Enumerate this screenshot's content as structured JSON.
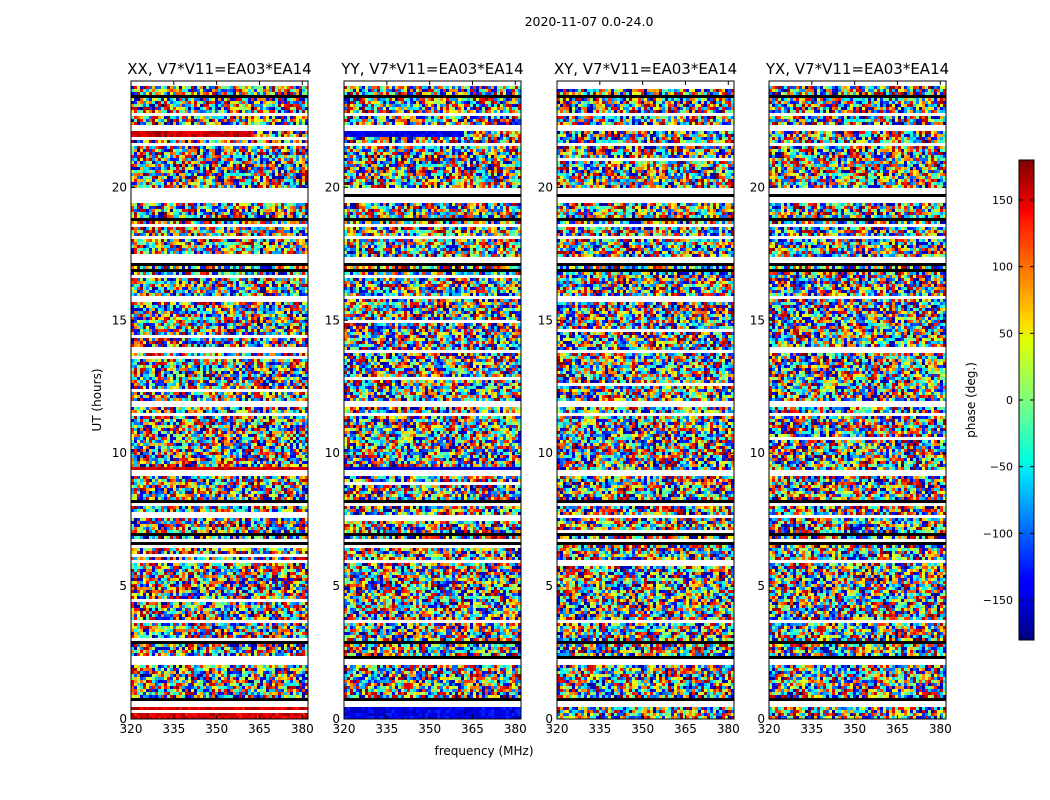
{
  "figure": {
    "suptitle": "2020-11-07 0.0-24.0",
    "xlabel": "frequency (MHz)",
    "ylabel": "UT (hours)"
  },
  "colorbar": {
    "label": "phase (deg.)",
    "range": [
      -180,
      180
    ],
    "ticks": [
      150,
      100,
      50,
      0,
      -50,
      -100,
      -150
    ],
    "tick_labels": [
      "150",
      "100",
      "50",
      "0",
      "−50",
      "−100",
      "−150"
    ],
    "colormap": "jet"
  },
  "chart_data": [
    {
      "type": "heatmap",
      "title": "XX, V7*V11=EA03*EA14",
      "x_ticks": [
        320,
        335,
        350,
        365,
        380
      ],
      "y_ticks": [
        0,
        5,
        10,
        15,
        20
      ],
      "xlim": [
        320,
        382
      ],
      "ylim": [
        0,
        24
      ],
      "z": "phase (deg.)",
      "zlim": [
        -180,
        180
      ]
    },
    {
      "type": "heatmap",
      "title": "YY, V7*V11=EA03*EA14",
      "x_ticks": [
        320,
        335,
        350,
        365,
        380
      ],
      "y_ticks": [
        0,
        5,
        10,
        15,
        20
      ],
      "xlim": [
        320,
        382
      ],
      "ylim": [
        0,
        24
      ],
      "z": "phase (deg.)",
      "zlim": [
        -180,
        180
      ]
    },
    {
      "type": "heatmap",
      "title": "XY, V7*V11=EA03*EA14",
      "x_ticks": [
        320,
        335,
        350,
        365,
        380
      ],
      "y_ticks": [
        0,
        5,
        10,
        15,
        20
      ],
      "xlim": [
        320,
        382
      ],
      "ylim": [
        0,
        24
      ],
      "z": "phase (deg.)",
      "zlim": [
        -180,
        180
      ]
    },
    {
      "type": "heatmap",
      "title": "YX, V7*V11=EA03*EA14",
      "x_ticks": [
        320,
        335,
        350,
        365,
        380
      ],
      "y_ticks": [
        0,
        5,
        10,
        15,
        20
      ],
      "xlim": [
        320,
        382
      ],
      "ylim": [
        0,
        24
      ],
      "z": "phase (deg.)",
      "zlim": [
        -180,
        180
      ]
    }
  ]
}
